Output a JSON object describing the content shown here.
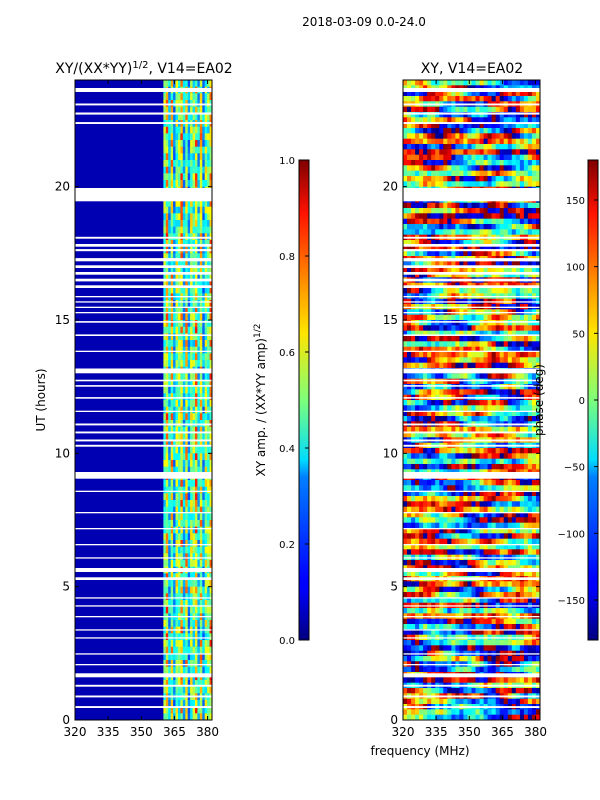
{
  "figure_title": "2018-03-09 0.0-24.0",
  "chart_data": [
    {
      "type": "heatmap",
      "title": "XY/(XX*YY)",
      "title_exponent": "1/2",
      "title_suffix": ", V14=EA02",
      "xlabel": "",
      "ylabel": "UT (hours)",
      "xlim": [
        320,
        382
      ],
      "ylim": [
        0,
        24
      ],
      "xticks": [
        "320",
        "335",
        "350",
        "365",
        "380"
      ],
      "xtick_values": [
        320,
        335,
        350,
        365,
        380
      ],
      "yticks": [
        "0",
        "5",
        "10",
        "15",
        "20"
      ],
      "ytick_values": [
        0,
        5,
        10,
        15,
        20
      ],
      "colormap": "jet",
      "colorbar": {
        "label": "XY amp. / (XX*YY amp)",
        "label_exponent": "1/2",
        "range": [
          0.0,
          1.0
        ],
        "ticks": [
          "0.0",
          "0.2",
          "0.4",
          "0.6",
          "0.8",
          "1.0"
        ],
        "tick_values": [
          0.0,
          0.2,
          0.4,
          0.6,
          0.8,
          1.0
        ]
      },
      "features": {
        "background_value": 0.05,
        "bright_band_MHz": [
          360,
          381
        ],
        "bright_values": [
          0.55,
          0.75,
          0.4,
          0.7,
          0.35,
          0.6
        ]
      }
    },
    {
      "type": "heatmap",
      "title": "XY, V14=EA02",
      "xlabel": "frequency (MHz)",
      "ylabel": "",
      "xlim": [
        320,
        382
      ],
      "ylim": [
        0,
        24
      ],
      "xticks": [
        "320",
        "335",
        "350",
        "365",
        "380"
      ],
      "xtick_values": [
        320,
        335,
        350,
        365,
        380
      ],
      "yticks": [
        "0",
        "5",
        "10",
        "15",
        "20"
      ],
      "ytick_values": [
        0,
        5,
        10,
        15,
        20
      ],
      "colormap": "jet",
      "colorbar": {
        "label": "phase (deg)",
        "range": [
          -180,
          180
        ],
        "ticks": [
          "−150",
          "−100",
          "−50",
          "0",
          "50",
          "100",
          "150"
        ],
        "tick_values": [
          -150,
          -100,
          -50,
          0,
          50,
          100,
          150
        ]
      }
    }
  ],
  "data_gaps_UT_hours": [
    [
      23.55,
      23.7
    ],
    [
      23.05,
      23.12
    ],
    [
      22.7,
      22.78
    ],
    [
      22.35,
      22.42
    ],
    [
      19.45,
      19.95
    ],
    [
      18.05,
      18.12
    ],
    [
      17.75,
      17.85
    ],
    [
      17.58,
      17.66
    ],
    [
      17.2,
      17.32
    ],
    [
      16.95,
      17.05
    ],
    [
      16.7,
      16.8
    ],
    [
      16.45,
      16.55
    ],
    [
      16.2,
      16.3
    ],
    [
      15.85,
      15.9
    ],
    [
      15.65,
      15.7
    ],
    [
      15.45,
      15.5
    ],
    [
      15.25,
      15.3
    ],
    [
      14.9,
      14.96
    ],
    [
      14.4,
      14.46
    ],
    [
      13.8,
      13.85
    ],
    [
      13.0,
      13.18
    ],
    [
      12.7,
      12.76
    ],
    [
      12.5,
      12.56
    ],
    [
      12.05,
      12.11
    ],
    [
      11.55,
      11.6
    ],
    [
      11.05,
      11.12
    ],
    [
      10.75,
      10.82
    ],
    [
      10.45,
      10.52
    ],
    [
      10.25,
      10.32
    ],
    [
      9.05,
      9.3
    ],
    [
      8.55,
      8.6
    ],
    [
      7.75,
      7.8
    ],
    [
      7.15,
      7.2
    ],
    [
      6.55,
      6.6
    ],
    [
      6.05,
      6.1
    ],
    [
      5.55,
      5.7
    ],
    [
      5.25,
      5.35
    ],
    [
      4.55,
      4.6
    ],
    [
      4.25,
      4.3
    ],
    [
      3.85,
      3.9
    ],
    [
      3.35,
      3.4
    ],
    [
      3.05,
      3.1
    ],
    [
      2.45,
      2.5
    ],
    [
      2.05,
      2.1
    ],
    [
      1.6,
      1.75
    ],
    [
      1.25,
      1.32
    ],
    [
      0.85,
      0.92
    ],
    [
      0.45,
      0.52
    ]
  ]
}
